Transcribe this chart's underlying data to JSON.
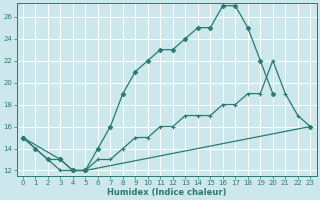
{
  "xlabel": "Humidex (Indice chaleur)",
  "bg_color": "#cce8ec",
  "grid_color": "#ffffff",
  "line_color": "#2a7a6f",
  "xlim": [
    -0.5,
    23.5
  ],
  "ylim": [
    11.5,
    27.2
  ],
  "xticks": [
    0,
    1,
    2,
    3,
    4,
    5,
    6,
    7,
    8,
    9,
    10,
    11,
    12,
    13,
    14,
    15,
    16,
    17,
    18,
    19,
    20,
    21,
    22,
    23
  ],
  "yticks": [
    12,
    14,
    16,
    18,
    20,
    22,
    24,
    26
  ],
  "line1_x": [
    0,
    1,
    2,
    3,
    4,
    5,
    6,
    7,
    8,
    9,
    10,
    11,
    12,
    13,
    14,
    15,
    16,
    17,
    18,
    19,
    20
  ],
  "line1_y": [
    15,
    14,
    13,
    13,
    12,
    12,
    14,
    16,
    19,
    21,
    22,
    23,
    23,
    24,
    25,
    25,
    27,
    27,
    25,
    22,
    19
  ],
  "line2_x": [
    0,
    1,
    2,
    3,
    4,
    5,
    6,
    7,
    8,
    9,
    10,
    11,
    12,
    13,
    14,
    15,
    16,
    17,
    18,
    19,
    20,
    21,
    22,
    23
  ],
  "line2_y": [
    15,
    14,
    13,
    12,
    12,
    12,
    13,
    13,
    14,
    15,
    15,
    16,
    16,
    17,
    17,
    17,
    18,
    18,
    19,
    19,
    22,
    19,
    17,
    16
  ],
  "line3_x": [
    0,
    3,
    4,
    5,
    23
  ],
  "line3_y": [
    15,
    13,
    12,
    12,
    16
  ]
}
